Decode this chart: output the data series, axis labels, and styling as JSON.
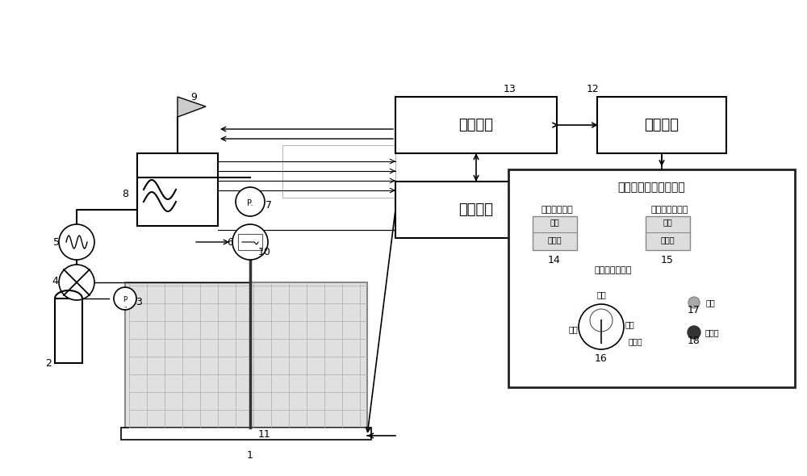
{
  "bg_color": "#ffffff",
  "line_color": "#000000",
  "box_color": "#ffffff",
  "gray_color": "#aaaaaa",
  "label_11": "接口单元",
  "label_12": "控制单元",
  "label_10": "配电单元",
  "label_13_title": "生命保障系统维护面板",
  "label_13_sub1": "氧源转换自检",
  "label_13_sub2": "氧气浓缩器校准",
  "label_13_sub3": "氧气调节器维护",
  "label_14_l1": "测试",
  "label_14_l2": "令动灯",
  "label_15_l1": "测试",
  "label_15_l2": "令动灯",
  "label_knob_close": "关闭",
  "label_knob_add": "加压",
  "label_knob_cal": "校准",
  "label_knob_std": "一标定",
  "label_pass": "通过",
  "label_fail": "未通过",
  "nums": [
    "1",
    "2",
    "3",
    "4",
    "5",
    "6",
    "7",
    "8",
    "9",
    "10",
    "11",
    "12",
    "13",
    "14",
    "15",
    "16",
    "17",
    "18"
  ]
}
